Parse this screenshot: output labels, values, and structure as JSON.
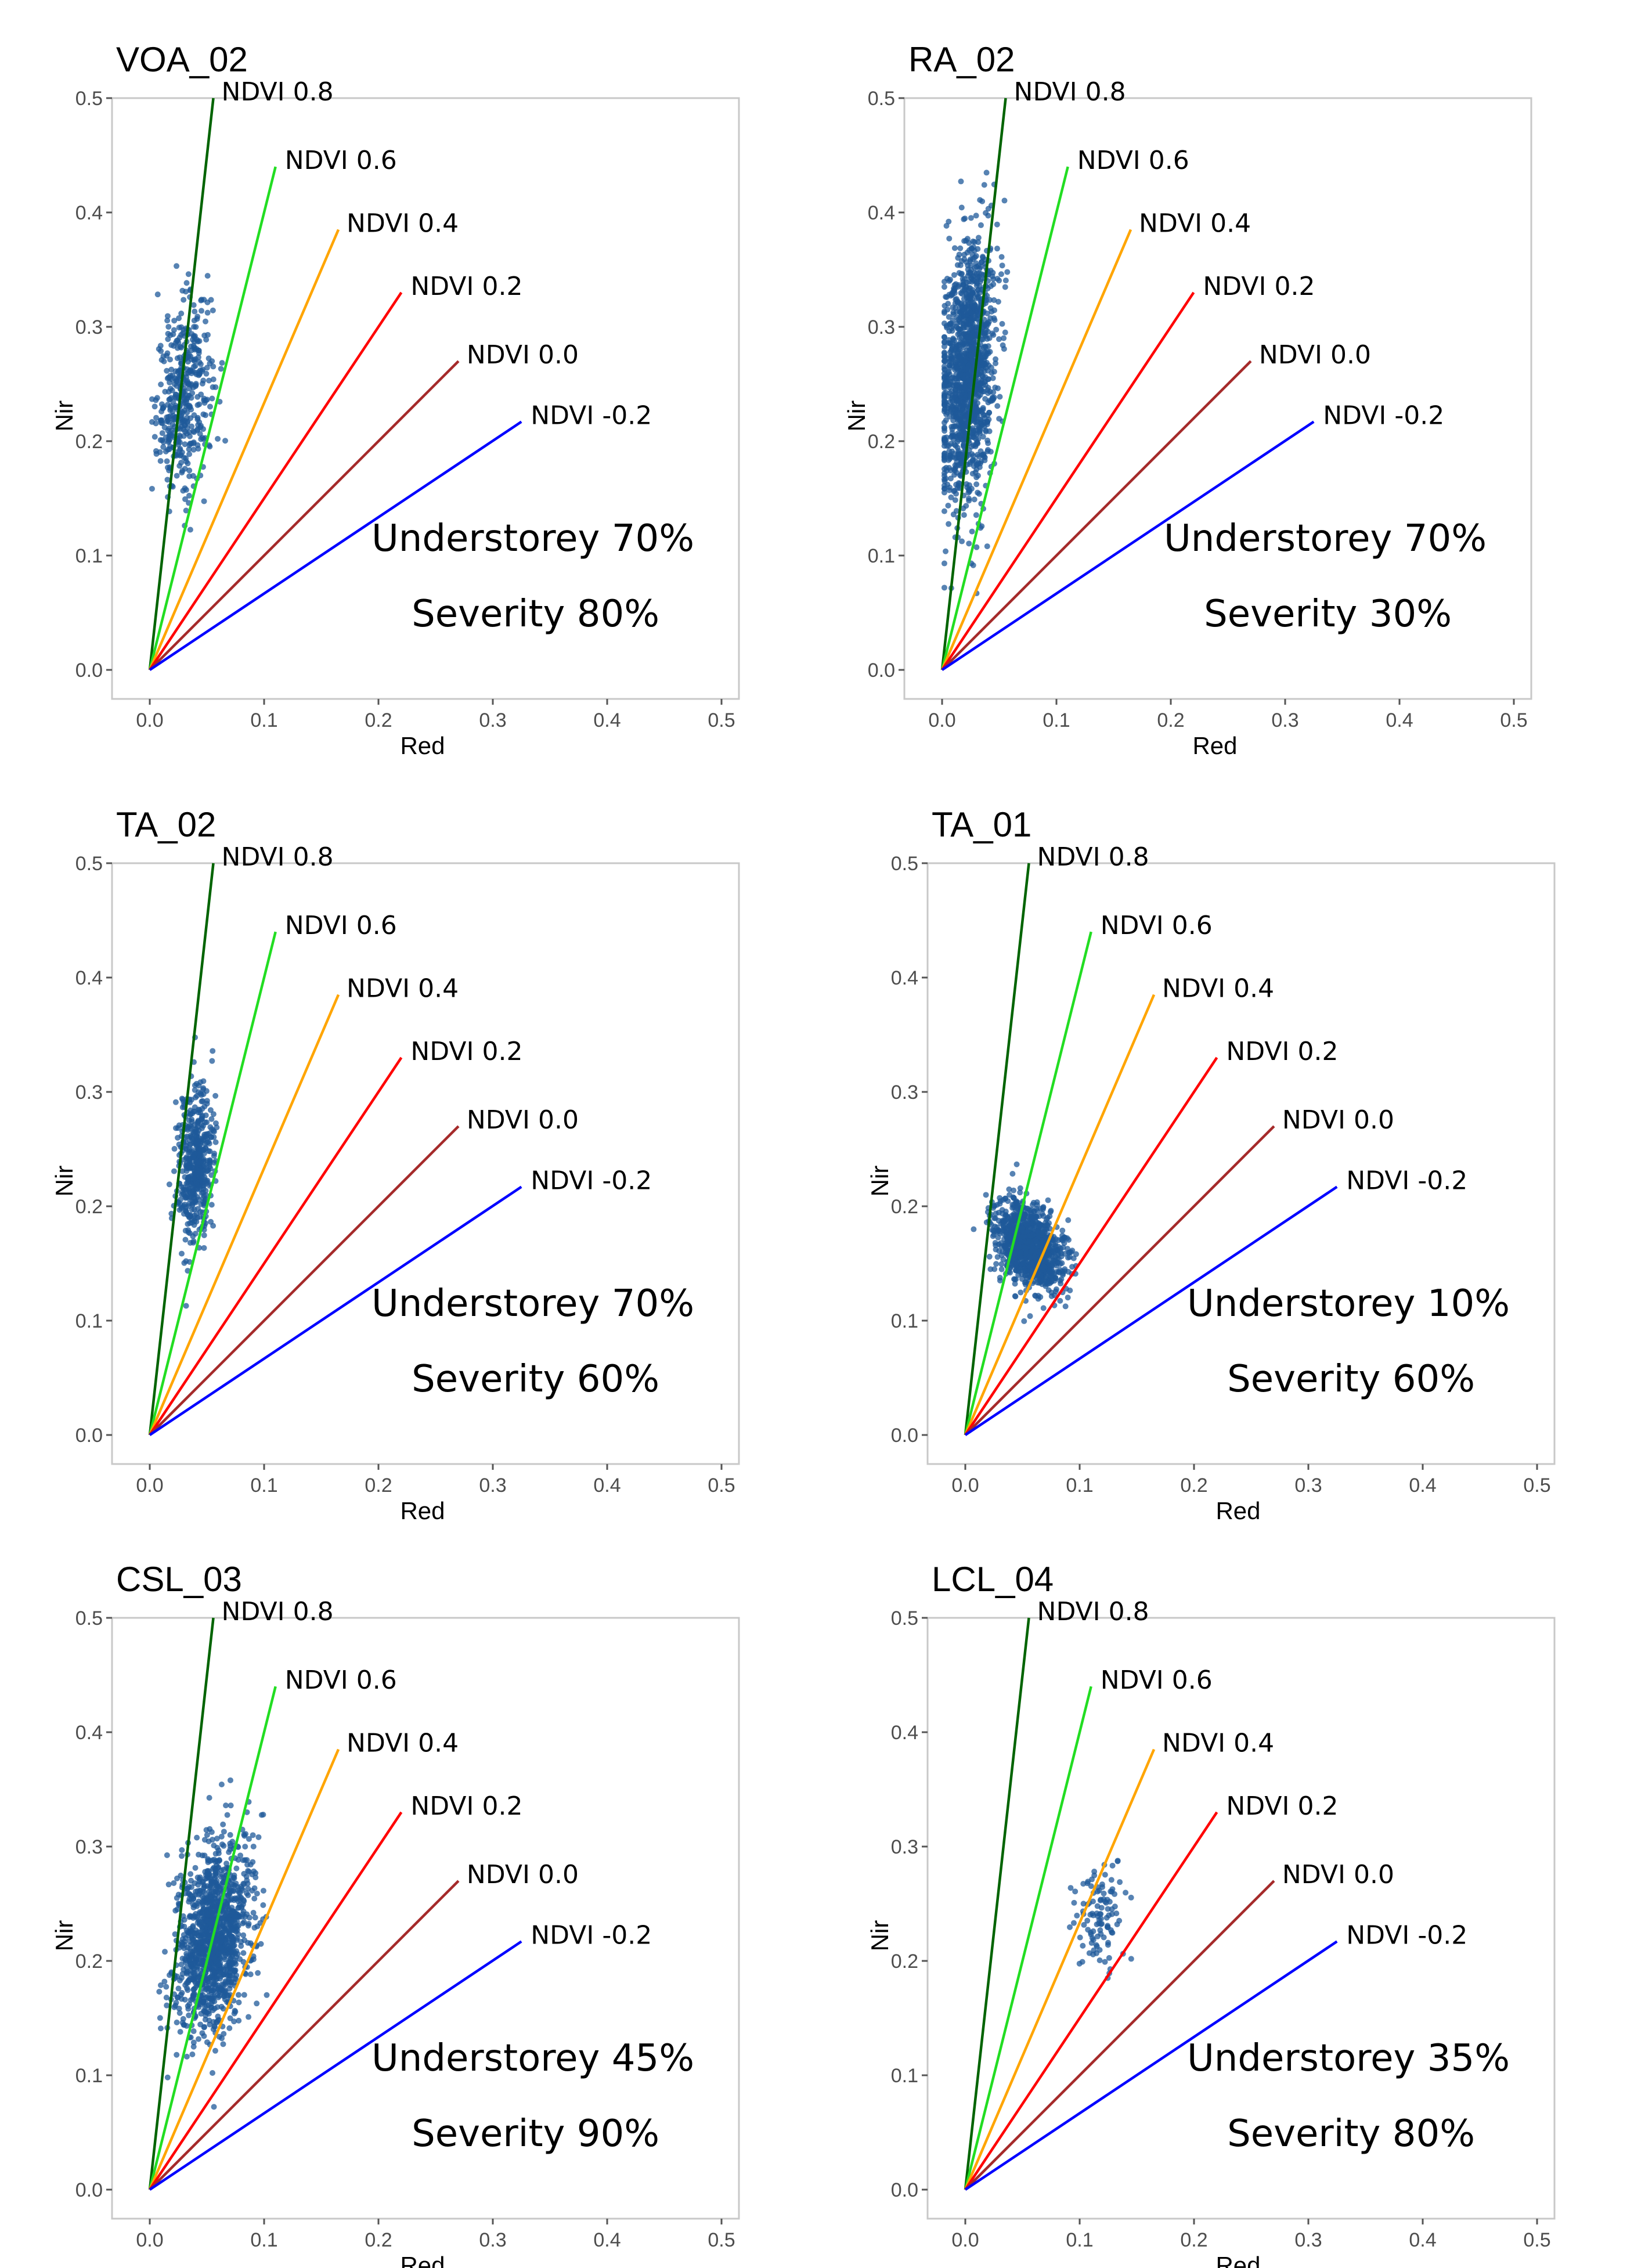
{
  "chart_data": [
    {
      "type": "scatter",
      "title": "VOA_02",
      "xlabel": "Red",
      "ylabel": "Nir",
      "xlim": [
        0,
        0.5
      ],
      "ylim": [
        0,
        0.5
      ],
      "xticks": [
        "0.0",
        "0.1",
        "0.2",
        "0.3",
        "0.4",
        "0.5"
      ],
      "yticks": [
        "0.0",
        "0.1",
        "0.2",
        "0.3",
        "0.4",
        "0.5"
      ],
      "ndvi_lines": [
        {
          "label": "NDVI 0.8",
          "ndvi": 0.8,
          "color": "#006400",
          "end_x": 0.0556,
          "end_y": 0.5
        },
        {
          "label": "NDVI 0.6",
          "ndvi": 0.6,
          "color": "#22dd22",
          "end_x": 0.11,
          "end_y": 0.44
        },
        {
          "label": "NDVI 0.4",
          "ndvi": 0.4,
          "color": "#ffa500",
          "end_x": 0.165,
          "end_y": 0.385
        },
        {
          "label": "NDVI 0.2",
          "ndvi": 0.2,
          "color": "#ff0000",
          "end_x": 0.22,
          "end_y": 0.33
        },
        {
          "label": "NDVI 0.0",
          "ndvi": 0.0,
          "color": "#a52a2a",
          "end_x": 0.27,
          "end_y": 0.27
        },
        {
          "label": "NDVI -0.2",
          "ndvi": -0.2,
          "color": "#0000ff",
          "end_x": 0.325,
          "end_y": 0.217
        }
      ],
      "scatter": {
        "center": [
          0.03,
          0.24
        ],
        "spread": [
          0.012,
          0.04
        ],
        "tilt": 0.6,
        "count": 450
      },
      "annotations": [
        "Understorey 70%",
        "Severity 80%"
      ]
    },
    {
      "type": "scatter",
      "title": "RA_02",
      "xlabel": "Red",
      "ylabel": "Nir",
      "xlim": [
        0,
        0.5
      ],
      "ylim": [
        0,
        0.5
      ],
      "xticks": [
        "0.0",
        "0.1",
        "0.2",
        "0.3",
        "0.4",
        "0.5"
      ],
      "yticks": [
        "0.0",
        "0.1",
        "0.2",
        "0.3",
        "0.4",
        "0.5"
      ],
      "ndvi_lines": [
        {
          "label": "NDVI 0.8",
          "ndvi": 0.8,
          "color": "#006400",
          "end_x": 0.0556,
          "end_y": 0.5
        },
        {
          "label": "NDVI 0.6",
          "ndvi": 0.6,
          "color": "#22dd22",
          "end_x": 0.11,
          "end_y": 0.44
        },
        {
          "label": "NDVI 0.4",
          "ndvi": 0.4,
          "color": "#ffa500",
          "end_x": 0.165,
          "end_y": 0.385
        },
        {
          "label": "NDVI 0.2",
          "ndvi": 0.2,
          "color": "#ff0000",
          "end_x": 0.22,
          "end_y": 0.33
        },
        {
          "label": "NDVI 0.0",
          "ndvi": 0.0,
          "color": "#a52a2a",
          "end_x": 0.27,
          "end_y": 0.27
        },
        {
          "label": "NDVI -0.2",
          "ndvi": -0.2,
          "color": "#0000ff",
          "end_x": 0.325,
          "end_y": 0.217
        }
      ],
      "scatter": {
        "center": [
          0.022,
          0.26
        ],
        "spread": [
          0.012,
          0.055
        ],
        "tilt": 0.7,
        "count": 1400
      },
      "annotations": [
        "Understorey 70%",
        "Severity 30%"
      ]
    },
    {
      "type": "scatter",
      "title": "TA_02",
      "xlabel": "Red",
      "ylabel": "Nir",
      "xlim": [
        0,
        0.5
      ],
      "ylim": [
        0,
        0.5
      ],
      "xticks": [
        "0.0",
        "0.1",
        "0.2",
        "0.3",
        "0.4",
        "0.5"
      ],
      "yticks": [
        "0.0",
        "0.1",
        "0.2",
        "0.3",
        "0.4",
        "0.5"
      ],
      "ndvi_lines": [
        {
          "label": "NDVI 0.8",
          "ndvi": 0.8,
          "color": "#006400",
          "end_x": 0.0556,
          "end_y": 0.5
        },
        {
          "label": "NDVI 0.6",
          "ndvi": 0.6,
          "color": "#22dd22",
          "end_x": 0.11,
          "end_y": 0.44
        },
        {
          "label": "NDVI 0.4",
          "ndvi": 0.4,
          "color": "#ffa500",
          "end_x": 0.165,
          "end_y": 0.385
        },
        {
          "label": "NDVI 0.2",
          "ndvi": 0.2,
          "color": "#ff0000",
          "end_x": 0.22,
          "end_y": 0.33
        },
        {
          "label": "NDVI 0.0",
          "ndvi": 0.0,
          "color": "#a52a2a",
          "end_x": 0.27,
          "end_y": 0.27
        },
        {
          "label": "NDVI -0.2",
          "ndvi": -0.2,
          "color": "#0000ff",
          "end_x": 0.325,
          "end_y": 0.217
        }
      ],
      "scatter": {
        "center": [
          0.04,
          0.235
        ],
        "spread": [
          0.008,
          0.035
        ],
        "tilt": 0.5,
        "count": 500
      },
      "annotations": [
        "Understorey 70%",
        "Severity 60%"
      ]
    },
    {
      "type": "scatter",
      "title": "TA_01",
      "xlabel": "Red",
      "ylabel": "Nir",
      "xlim": [
        0,
        0.5
      ],
      "ylim": [
        0,
        0.5
      ],
      "xticks": [
        "0.0",
        "0.1",
        "0.2",
        "0.3",
        "0.4",
        "0.5"
      ],
      "yticks": [
        "0.0",
        "0.1",
        "0.2",
        "0.3",
        "0.4",
        "0.5"
      ],
      "ndvi_lines": [
        {
          "label": "NDVI 0.8",
          "ndvi": 0.8,
          "color": "#006400",
          "end_x": 0.0556,
          "end_y": 0.5
        },
        {
          "label": "NDVI 0.6",
          "ndvi": 0.6,
          "color": "#22dd22",
          "end_x": 0.11,
          "end_y": 0.44
        },
        {
          "label": "NDVI 0.4",
          "ndvi": 0.4,
          "color": "#ffa500",
          "end_x": 0.165,
          "end_y": 0.385
        },
        {
          "label": "NDVI 0.2",
          "ndvi": 0.2,
          "color": "#ff0000",
          "end_x": 0.22,
          "end_y": 0.33
        },
        {
          "label": "NDVI 0.0",
          "ndvi": 0.0,
          "color": "#a52a2a",
          "end_x": 0.27,
          "end_y": 0.27
        },
        {
          "label": "NDVI -0.2",
          "ndvi": -0.2,
          "color": "#0000ff",
          "end_x": 0.325,
          "end_y": 0.217
        }
      ],
      "scatter": {
        "center": [
          0.055,
          0.165
        ],
        "spread": [
          0.015,
          0.018
        ],
        "tilt": -0.3,
        "count": 1100
      },
      "annotations": [
        "Understorey 10%",
        "Severity 60%"
      ]
    },
    {
      "type": "scatter",
      "title": "CSL_03",
      "xlabel": "Red",
      "ylabel": "Nir",
      "xlim": [
        0,
        0.5
      ],
      "ylim": [
        0,
        0.5
      ],
      "xticks": [
        "0.0",
        "0.1",
        "0.2",
        "0.3",
        "0.4",
        "0.5"
      ],
      "yticks": [
        "0.0",
        "0.1",
        "0.2",
        "0.3",
        "0.4",
        "0.5"
      ],
      "ndvi_lines": [
        {
          "label": "NDVI 0.8",
          "ndvi": 0.8,
          "color": "#006400",
          "end_x": 0.0556,
          "end_y": 0.5
        },
        {
          "label": "NDVI 0.6",
          "ndvi": 0.6,
          "color": "#22dd22",
          "end_x": 0.11,
          "end_y": 0.44
        },
        {
          "label": "NDVI 0.4",
          "ndvi": 0.4,
          "color": "#ffa500",
          "end_x": 0.165,
          "end_y": 0.385
        },
        {
          "label": "NDVI 0.2",
          "ndvi": 0.2,
          "color": "#ff0000",
          "end_x": 0.22,
          "end_y": 0.33
        },
        {
          "label": "NDVI 0.0",
          "ndvi": 0.0,
          "color": "#a52a2a",
          "end_x": 0.27,
          "end_y": 0.27
        },
        {
          "label": "NDVI -0.2",
          "ndvi": -0.2,
          "color": "#0000ff",
          "end_x": 0.325,
          "end_y": 0.217
        }
      ],
      "scatter": {
        "center": [
          0.055,
          0.22
        ],
        "spread": [
          0.016,
          0.04
        ],
        "tilt": 0.5,
        "count": 1300
      },
      "annotations": [
        "Understorey 45%",
        "Severity 90%"
      ]
    },
    {
      "type": "scatter",
      "title": "LCL_04",
      "xlabel": "Red",
      "ylabel": "Nir",
      "xlim": [
        0,
        0.5
      ],
      "ylim": [
        0,
        0.5
      ],
      "xticks": [
        "0.0",
        "0.1",
        "0.2",
        "0.3",
        "0.4",
        "0.5"
      ],
      "yticks": [
        "0.0",
        "0.1",
        "0.2",
        "0.3",
        "0.4",
        "0.5"
      ],
      "ndvi_lines": [
        {
          "label": "NDVI 0.8",
          "ndvi": 0.8,
          "color": "#006400",
          "end_x": 0.0556,
          "end_y": 0.5
        },
        {
          "label": "NDVI 0.6",
          "ndvi": 0.6,
          "color": "#22dd22",
          "end_x": 0.11,
          "end_y": 0.44
        },
        {
          "label": "NDVI 0.4",
          "ndvi": 0.4,
          "color": "#ffa500",
          "end_x": 0.165,
          "end_y": 0.385
        },
        {
          "label": "NDVI 0.2",
          "ndvi": 0.2,
          "color": "#ff0000",
          "end_x": 0.22,
          "end_y": 0.33
        },
        {
          "label": "NDVI 0.0",
          "ndvi": 0.0,
          "color": "#a52a2a",
          "end_x": 0.27,
          "end_y": 0.27
        },
        {
          "label": "NDVI -0.2",
          "ndvi": -0.2,
          "color": "#0000ff",
          "end_x": 0.325,
          "end_y": 0.217
        }
      ],
      "scatter": {
        "center": [
          0.115,
          0.24
        ],
        "spread": [
          0.012,
          0.025
        ],
        "tilt": 0.2,
        "count": 110
      },
      "annotations": [
        "Understorey 35%",
        "Severity 80%"
      ]
    }
  ]
}
